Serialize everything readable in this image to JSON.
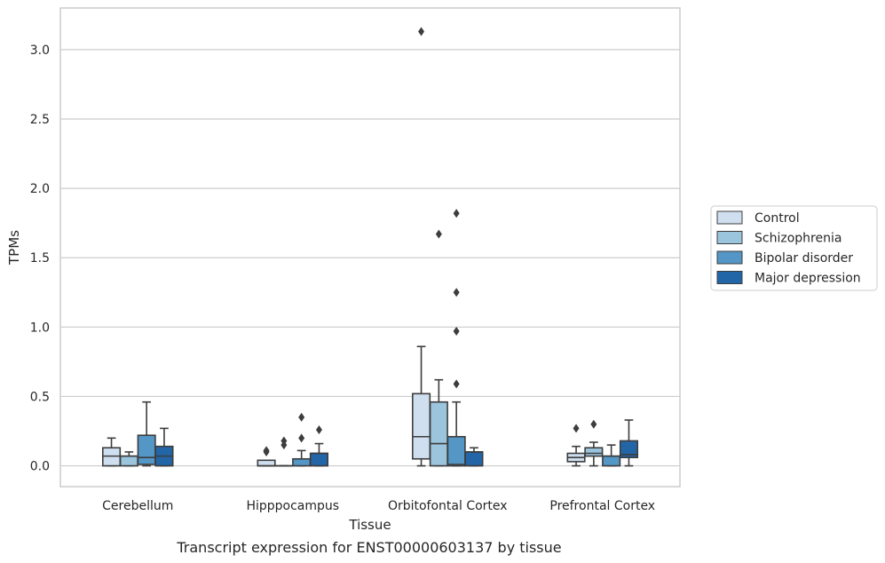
{
  "caption": "Transcript expression for ENST00000603137 by tissue",
  "colors": {
    "grid": "#cccccc",
    "spine": "#cccccc",
    "box_edge": "#3d3d3d",
    "Control": "#cfdff0",
    "Schizophrenia": "#9bc4dd",
    "Bipolar disorder": "#5496c6",
    "Major depression": "#2366a8"
  },
  "chart_data": {
    "type": "box",
    "xlabel": "Tissue",
    "ylabel": "TPMs",
    "ylim": [
      -0.15,
      3.3
    ],
    "yticks": [
      0.0,
      0.5,
      1.0,
      1.5,
      2.0,
      2.5,
      3.0
    ],
    "ytick_labels": [
      "0.0",
      "0.5",
      "1.0",
      "1.5",
      "2.0",
      "2.5",
      "3.0"
    ],
    "grid": true,
    "legend_position": "right",
    "categories": [
      "Cerebellum",
      "Hipppocampus",
      "Orbitofontal Cortex",
      "Prefrontal Cortex"
    ],
    "series": [
      {
        "name": "Control",
        "boxes": [
          {
            "whislo": 0.0,
            "q1": 0.0,
            "med": 0.07,
            "q3": 0.13,
            "whishi": 0.2,
            "fliers": []
          },
          {
            "whislo": 0.0,
            "q1": 0.0,
            "med": 0.0,
            "q3": 0.04,
            "whishi": 0.04,
            "fliers": [
              0.11,
              0.1
            ]
          },
          {
            "whislo": 0.0,
            "q1": 0.05,
            "med": 0.21,
            "q3": 0.52,
            "whishi": 0.86,
            "fliers": [
              3.13
            ]
          },
          {
            "whislo": 0.0,
            "q1": 0.03,
            "med": 0.06,
            "q3": 0.09,
            "whishi": 0.14,
            "fliers": [
              0.27
            ]
          }
        ]
      },
      {
        "name": "Schizophrenia",
        "boxes": [
          {
            "whislo": 0.0,
            "q1": 0.0,
            "med": 0.07,
            "q3": 0.07,
            "whishi": 0.1,
            "fliers": []
          },
          {
            "whislo": 0.0,
            "q1": 0.0,
            "med": 0.0,
            "q3": 0.0,
            "whishi": 0.0,
            "fliers": [
              0.18,
              0.15
            ]
          },
          {
            "whislo": 0.0,
            "q1": 0.0,
            "med": 0.16,
            "q3": 0.46,
            "whishi": 0.62,
            "fliers": [
              1.67
            ]
          },
          {
            "whislo": 0.0,
            "q1": 0.07,
            "med": 0.09,
            "q3": 0.13,
            "whishi": 0.17,
            "fliers": [
              0.3
            ]
          }
        ]
      },
      {
        "name": "Bipolar disorder",
        "boxes": [
          {
            "whislo": 0.0,
            "q1": 0.01,
            "med": 0.06,
            "q3": 0.22,
            "whishi": 0.46,
            "fliers": []
          },
          {
            "whislo": 0.0,
            "q1": 0.0,
            "med": 0.05,
            "q3": 0.05,
            "whishi": 0.11,
            "fliers": [
              0.35,
              0.2
            ]
          },
          {
            "whislo": 0.0,
            "q1": 0.0,
            "med": 0.01,
            "q3": 0.21,
            "whishi": 0.46,
            "fliers": [
              1.82,
              1.25,
              0.97,
              0.59
            ]
          },
          {
            "whislo": 0.0,
            "q1": 0.0,
            "med": 0.07,
            "q3": 0.07,
            "whishi": 0.15,
            "fliers": []
          }
        ]
      },
      {
        "name": "Major depression",
        "boxes": [
          {
            "whislo": 0.0,
            "q1": 0.0,
            "med": 0.07,
            "q3": 0.14,
            "whishi": 0.27,
            "fliers": []
          },
          {
            "whislo": 0.0,
            "q1": 0.0,
            "med": 0.09,
            "q3": 0.09,
            "whishi": 0.16,
            "fliers": [
              0.26
            ]
          },
          {
            "whislo": 0.0,
            "q1": 0.0,
            "med": 0.1,
            "q3": 0.1,
            "whishi": 0.13,
            "fliers": []
          },
          {
            "whislo": 0.0,
            "q1": 0.06,
            "med": 0.08,
            "q3": 0.18,
            "whishi": 0.33,
            "fliers": []
          }
        ]
      }
    ]
  }
}
